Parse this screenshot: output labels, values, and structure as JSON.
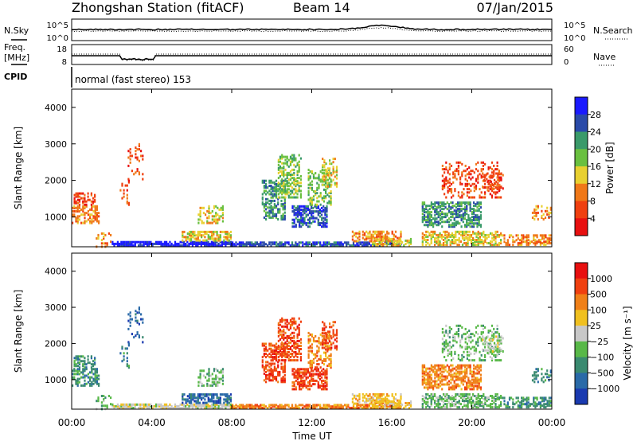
{
  "header": {
    "station": "Zhongshan Station (fitACF)",
    "beam": "Beam 14",
    "date": "07/Jan/2015"
  },
  "top_panel_labels": {
    "left_sky": "N.Sky",
    "left_freq_line1": "Freq.",
    "left_freq_line2": "[MHz]",
    "left_cpid": "CPID",
    "right_search": "N.Search",
    "right_nave": "Nave",
    "cpid_text": "normal (fast stereo) 153"
  },
  "colors": {
    "power": [
      "#1a1aff",
      "#2a4aa8",
      "#3a9a6a",
      "#6ac040",
      "#e8d030",
      "#f07818",
      "#f04010",
      "#e81010"
    ],
    "velocity": [
      "#e81010",
      "#f04010",
      "#f08018",
      "#f0c020",
      "#c8c8c8",
      "#58b848",
      "#3a8a70",
      "#2a6aa8",
      "#1a3ab0"
    ]
  },
  "chart_data": [
    {
      "type": "line",
      "panel": "noise",
      "ylabel_left": "N.Sky",
      "ylabel_right": "N.Search",
      "y_ticks_left": [
        "10^5",
        "10^0"
      ],
      "y_ticks_right": [
        "10^5",
        "10^0"
      ],
      "xlim_hours": [
        0,
        24
      ]
    },
    {
      "type": "line",
      "panel": "frequency",
      "ylabel_left": "[MHz]",
      "ylabel_right": "Nave",
      "y_ticks_left": [
        "18",
        "8"
      ],
      "y_ticks_right": [
        "60",
        "0"
      ],
      "xlim_hours": [
        0,
        24
      ]
    },
    {
      "type": "heatmap",
      "panel": "power",
      "ylabel": "Slant Range [km]",
      "ylim": [
        180,
        4500
      ],
      "y_ticks": [
        1000,
        2000,
        3000,
        4000
      ],
      "xlim_hours": [
        0,
        24
      ],
      "colorbar_label": "Power [dB]",
      "colorbar_ticks": [
        "28",
        "24",
        "20",
        "16",
        "12",
        "8",
        "4"
      ]
    },
    {
      "type": "heatmap",
      "panel": "velocity",
      "ylabel": "Slant Range [km]",
      "ylim": [
        180,
        4500
      ],
      "y_ticks": [
        1000,
        2000,
        3000,
        4000
      ],
      "xlim_hours": [
        0,
        24
      ],
      "xlabel": "Time UT",
      "x_ticks": [
        "00:00",
        "04:00",
        "08:00",
        "12:00",
        "16:00",
        "20:00",
        "00:00"
      ],
      "colorbar_label": "Velocity [m s⁻¹]",
      "colorbar_ticks": [
        "1000",
        "500",
        "100",
        "25",
        "−25",
        "−100",
        "−500",
        "−1000"
      ]
    }
  ]
}
